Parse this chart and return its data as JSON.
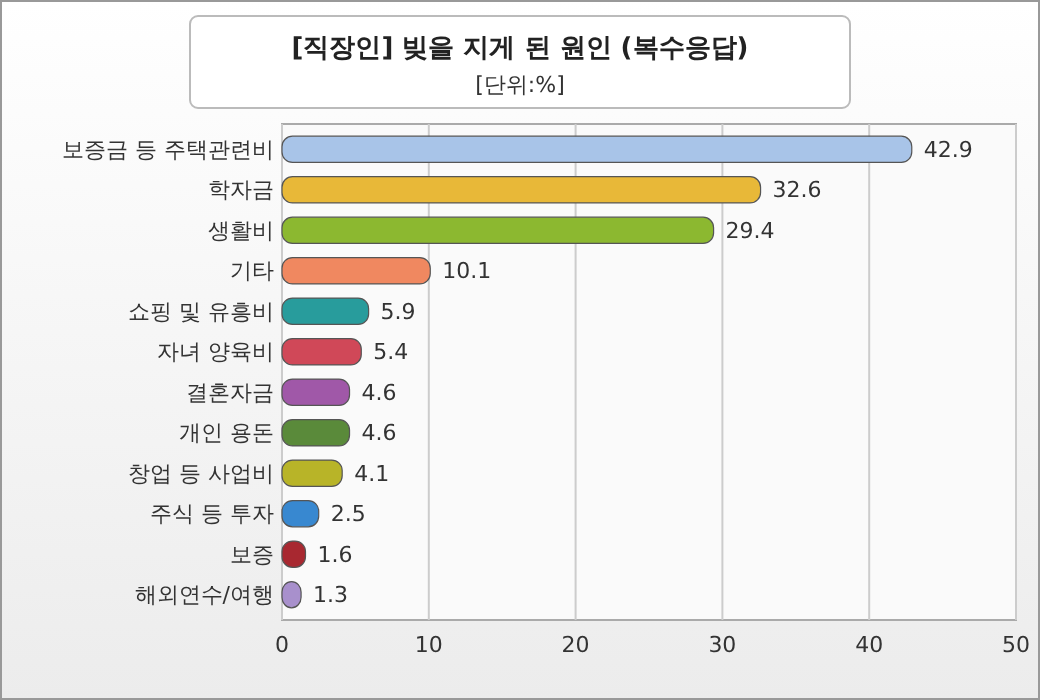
{
  "chart_data": {
    "type": "bar",
    "orientation": "horizontal",
    "title": "[직장인] 빚을 지게 된 원인 (복수응답)",
    "subtitle": "[단위:%]",
    "categories": [
      "보증금 등 주택관련비",
      "학자금",
      "생활비",
      "기타",
      "쇼핑 및 유흥비",
      "자녀 양육비",
      "결혼자금",
      "개인 용돈",
      "창업 등 사업비",
      "주식 등 투자",
      "보증",
      "해외연수/여행"
    ],
    "values": [
      42.9,
      32.6,
      29.4,
      10.1,
      5.9,
      5.4,
      4.6,
      4.6,
      4.1,
      2.5,
      1.6,
      1.3
    ],
    "colors": [
      "#a8c4e8",
      "#e8b838",
      "#8cb830",
      "#f08860",
      "#289c9c",
      "#d04858",
      "#a058a8",
      "#5a8a3a",
      "#b8b428",
      "#3888d0",
      "#a82830",
      "#a890cc"
    ],
    "xlim": [
      0,
      50
    ],
    "xticks": [
      0,
      10,
      20,
      30,
      40,
      50
    ],
    "grid": "x",
    "data_labels": true
  }
}
